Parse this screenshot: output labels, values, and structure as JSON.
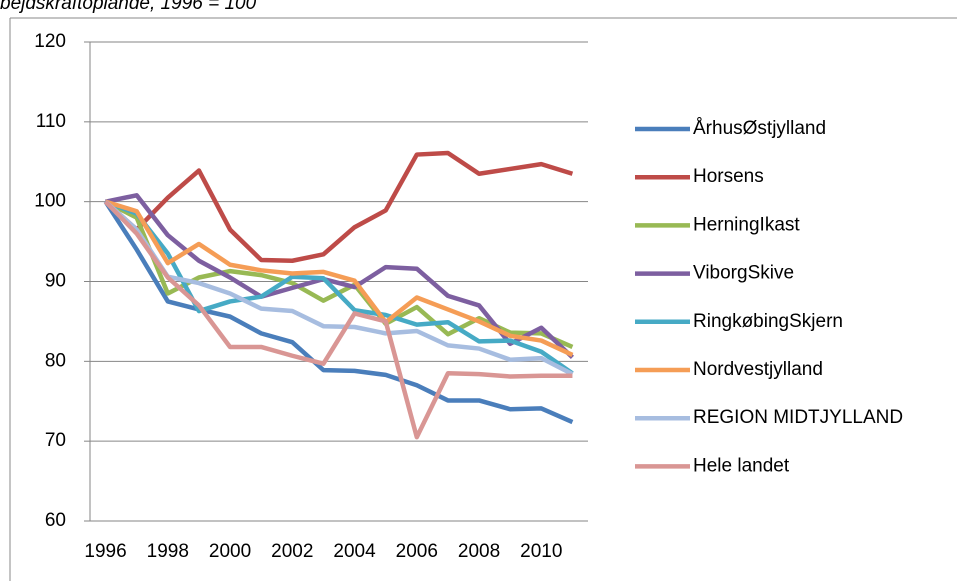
{
  "chart_data": {
    "type": "line",
    "title": "bejdskraftoplande, 1996 = 100",
    "categories": [
      "1996",
      null,
      "1998",
      null,
      "2000",
      null,
      "2002",
      null,
      "2004",
      null,
      "2006",
      null,
      "2008",
      null,
      "2010",
      null
    ],
    "series": [
      {
        "name": "ÅrhusØstjylland",
        "color": "#4a7ebb",
        "values": [
          100,
          94,
          87.5,
          86.5,
          85.6,
          83.5,
          82.4,
          78.9,
          78.8,
          78.3,
          77.0,
          75.1,
          75.1,
          74.0,
          74.1,
          72.4
        ]
      },
      {
        "name": "Horsens",
        "color": "#be4b48",
        "values": [
          100,
          96.5,
          100.5,
          103.9,
          96.5,
          92.7,
          92.6,
          93.4,
          96.8,
          98.9,
          105.9,
          106.1,
          103.5,
          104.1,
          104.7,
          103.5
        ]
      },
      {
        "name": "HerningIkast",
        "color": "#98b954",
        "values": [
          100,
          98,
          88.5,
          90.5,
          91.3,
          90.8,
          89.8,
          87.6,
          89.6,
          84.7,
          86.8,
          83.4,
          85.4,
          83.6,
          83.5,
          81.8
        ]
      },
      {
        "name": "ViborgSkive",
        "color": "#7d5fa0",
        "values": [
          100,
          100.8,
          95.8,
          92.6,
          90.5,
          88.1,
          89.2,
          90.3,
          89.3,
          91.8,
          91.6,
          88.2,
          87.0,
          82.2,
          84.2,
          80.5
        ]
      },
      {
        "name": "RingkøbingSkjern",
        "color": "#46aac5",
        "values": [
          100,
          98.5,
          93.5,
          86.3,
          87.5,
          88.1,
          90.6,
          90.4,
          86.4,
          85.8,
          84.6,
          84.9,
          82.5,
          82.6,
          81.2,
          78.5
        ]
      },
      {
        "name": "Nordvestjylland",
        "color": "#f59d56",
        "values": [
          100,
          98.8,
          92.3,
          94.7,
          92.1,
          91.4,
          91.0,
          91.2,
          90.1,
          84.9,
          88.0,
          86.5,
          85.0,
          83.2,
          82.6,
          80.8
        ]
      },
      {
        "name": "REGION MIDTJYLLAND",
        "color": "#a7bde0",
        "values": [
          100,
          96.5,
          90.6,
          89.8,
          88.5,
          86.6,
          86.3,
          84.4,
          84.3,
          83.5,
          83.8,
          82.0,
          81.6,
          80.2,
          80.4,
          78.4
        ]
      },
      {
        "name": "Hele landet",
        "color": "#d99694",
        "values": [
          100,
          96.0,
          90.5,
          87.0,
          81.8,
          81.8,
          80.7,
          79.7,
          86.0,
          85.0,
          70.5,
          78.5,
          78.4,
          78.1,
          78.2,
          78.2
        ]
      }
    ],
    "ylim": [
      60,
      120
    ],
    "yticks": [
      60,
      70,
      80,
      90,
      100,
      110,
      120
    ],
    "grid": true,
    "legend": "right"
  }
}
